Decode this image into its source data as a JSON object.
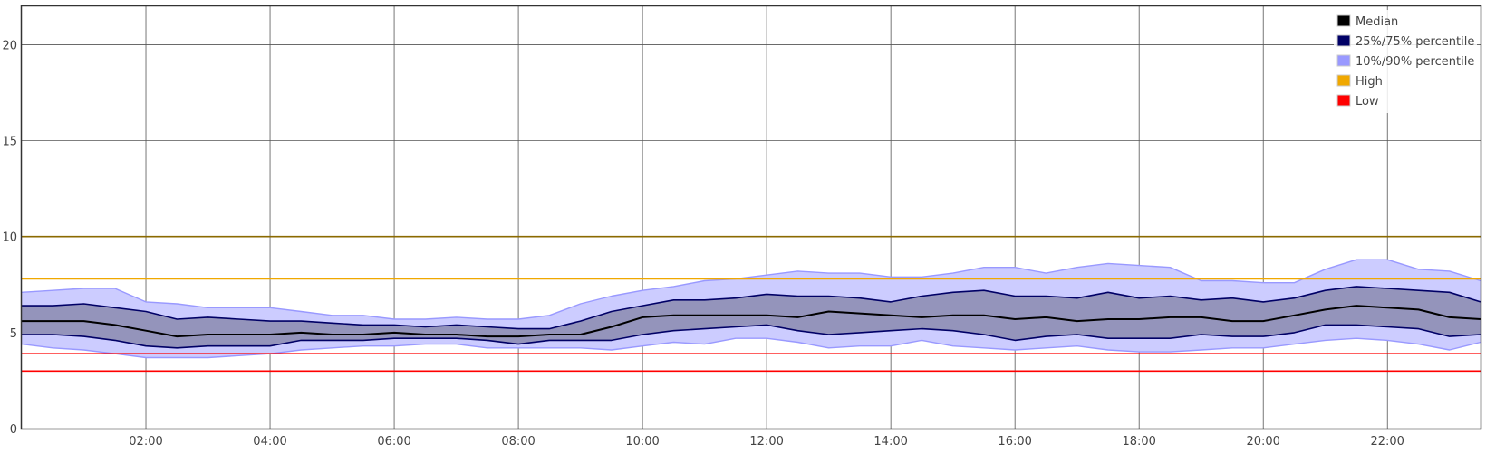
{
  "chart_data": {
    "type": "area",
    "x_unit": "hours",
    "x": [
      0,
      0.5,
      1,
      1.5,
      2,
      2.5,
      3,
      3.5,
      4,
      4.5,
      5,
      5.5,
      6,
      6.5,
      7,
      7.5,
      8,
      8.5,
      9,
      9.5,
      10,
      10.5,
      11,
      11.5,
      12,
      12.5,
      13,
      13.5,
      14,
      14.5,
      15,
      15.5,
      16,
      16.5,
      17,
      17.5,
      18,
      18.5,
      19,
      19.5,
      20,
      20.5,
      21,
      21.5,
      22,
      22.5,
      23,
      23.5
    ],
    "xlim": [
      0,
      23.5
    ],
    "ylim": [
      0,
      22
    ],
    "x_ticks": [
      2,
      4,
      6,
      8,
      10,
      12,
      14,
      16,
      18,
      20,
      22
    ],
    "x_tick_labels": [
      "02:00",
      "04:00",
      "06:00",
      "08:00",
      "10:00",
      "12:00",
      "14:00",
      "16:00",
      "18:00",
      "20:00",
      "22:00"
    ],
    "y_ticks": [
      0,
      5,
      10,
      15,
      20
    ],
    "y_tick_labels": [
      "0",
      "5",
      "10",
      "15",
      "20"
    ],
    "grid": true,
    "legend_position": "top-right",
    "legend": [
      {
        "label": "Median",
        "color": "#000000"
      },
      {
        "label": "25%/75% percentile",
        "color": "#000066"
      },
      {
        "label": "10%/90% percentile",
        "color": "#9999ff"
      },
      {
        "label": "High",
        "color": "#f0a800"
      },
      {
        "label": "Low",
        "color": "#ff0000"
      }
    ],
    "series": [
      {
        "name": "Median",
        "color": "#000000",
        "values": [
          5.6,
          5.6,
          5.6,
          5.4,
          5.1,
          4.8,
          4.9,
          4.9,
          4.9,
          5.0,
          4.9,
          4.9,
          5.0,
          4.9,
          4.9,
          4.8,
          4.8,
          4.9,
          4.9,
          5.3,
          5.8,
          5.9,
          5.9,
          5.9,
          5.9,
          5.8,
          6.1,
          6.0,
          5.9,
          5.8,
          5.9,
          5.9,
          5.7,
          5.8,
          5.6,
          5.7,
          5.7,
          5.8,
          5.8,
          5.6,
          5.6,
          5.9,
          6.2,
          6.4,
          6.3,
          6.2,
          5.8,
          5.7
        ]
      },
      {
        "name": "25% percentile",
        "color": "#000066",
        "values": [
          4.9,
          4.9,
          4.8,
          4.6,
          4.3,
          4.2,
          4.3,
          4.3,
          4.3,
          4.6,
          4.6,
          4.6,
          4.7,
          4.7,
          4.7,
          4.6,
          4.4,
          4.6,
          4.6,
          4.6,
          4.9,
          5.1,
          5.2,
          5.3,
          5.4,
          5.1,
          4.9,
          5.0,
          5.1,
          5.2,
          5.1,
          4.9,
          4.6,
          4.8,
          4.9,
          4.7,
          4.7,
          4.7,
          4.9,
          4.8,
          4.8,
          5.0,
          5.4,
          5.4,
          5.3,
          5.2,
          4.8,
          4.9
        ]
      },
      {
        "name": "75% percentile",
        "color": "#000066",
        "values": [
          6.4,
          6.4,
          6.5,
          6.3,
          6.1,
          5.7,
          5.8,
          5.7,
          5.6,
          5.6,
          5.5,
          5.4,
          5.4,
          5.3,
          5.4,
          5.3,
          5.2,
          5.2,
          5.6,
          6.1,
          6.4,
          6.7,
          6.7,
          6.8,
          7.0,
          6.9,
          6.9,
          6.8,
          6.6,
          6.9,
          7.1,
          7.2,
          6.9,
          6.9,
          6.8,
          7.1,
          6.8,
          6.9,
          6.7,
          6.8,
          6.6,
          6.8,
          7.2,
          7.4,
          7.3,
          7.2,
          7.1,
          6.6
        ]
      },
      {
        "name": "10% percentile",
        "color": "#9999ff",
        "values": [
          4.4,
          4.2,
          4.1,
          3.9,
          3.7,
          3.7,
          3.7,
          3.8,
          3.9,
          4.1,
          4.2,
          4.3,
          4.3,
          4.4,
          4.4,
          4.2,
          4.2,
          4.2,
          4.2,
          4.1,
          4.3,
          4.5,
          4.4,
          4.7,
          4.7,
          4.5,
          4.2,
          4.3,
          4.3,
          4.6,
          4.3,
          4.2,
          4.1,
          4.2,
          4.3,
          4.1,
          4.0,
          4.0,
          4.1,
          4.2,
          4.2,
          4.4,
          4.6,
          4.7,
          4.6,
          4.4,
          4.1,
          4.5
        ]
      },
      {
        "name": "90% percentile",
        "color": "#9999ff",
        "values": [
          7.1,
          7.2,
          7.3,
          7.3,
          6.6,
          6.5,
          6.3,
          6.3,
          6.3,
          6.1,
          5.9,
          5.9,
          5.7,
          5.7,
          5.8,
          5.7,
          5.7,
          5.9,
          6.5,
          6.9,
          7.2,
          7.4,
          7.7,
          7.8,
          8.0,
          8.2,
          8.1,
          8.1,
          7.9,
          7.9,
          8.1,
          8.4,
          8.4,
          8.1,
          8.4,
          8.6,
          8.5,
          8.4,
          7.7,
          7.7,
          7.6,
          7.6,
          8.3,
          8.8,
          8.8,
          8.3,
          8.2,
          7.7
        ]
      }
    ],
    "reference_lines": [
      {
        "name": "High",
        "color": "#f0a800",
        "value": 7.8
      },
      {
        "name": "High",
        "color": "#8b6a00",
        "value": 10.0
      },
      {
        "name": "Low",
        "color": "#ff0000",
        "value": 3.9
      },
      {
        "name": "Low",
        "color": "#ff0000",
        "value": 3.0
      }
    ]
  }
}
